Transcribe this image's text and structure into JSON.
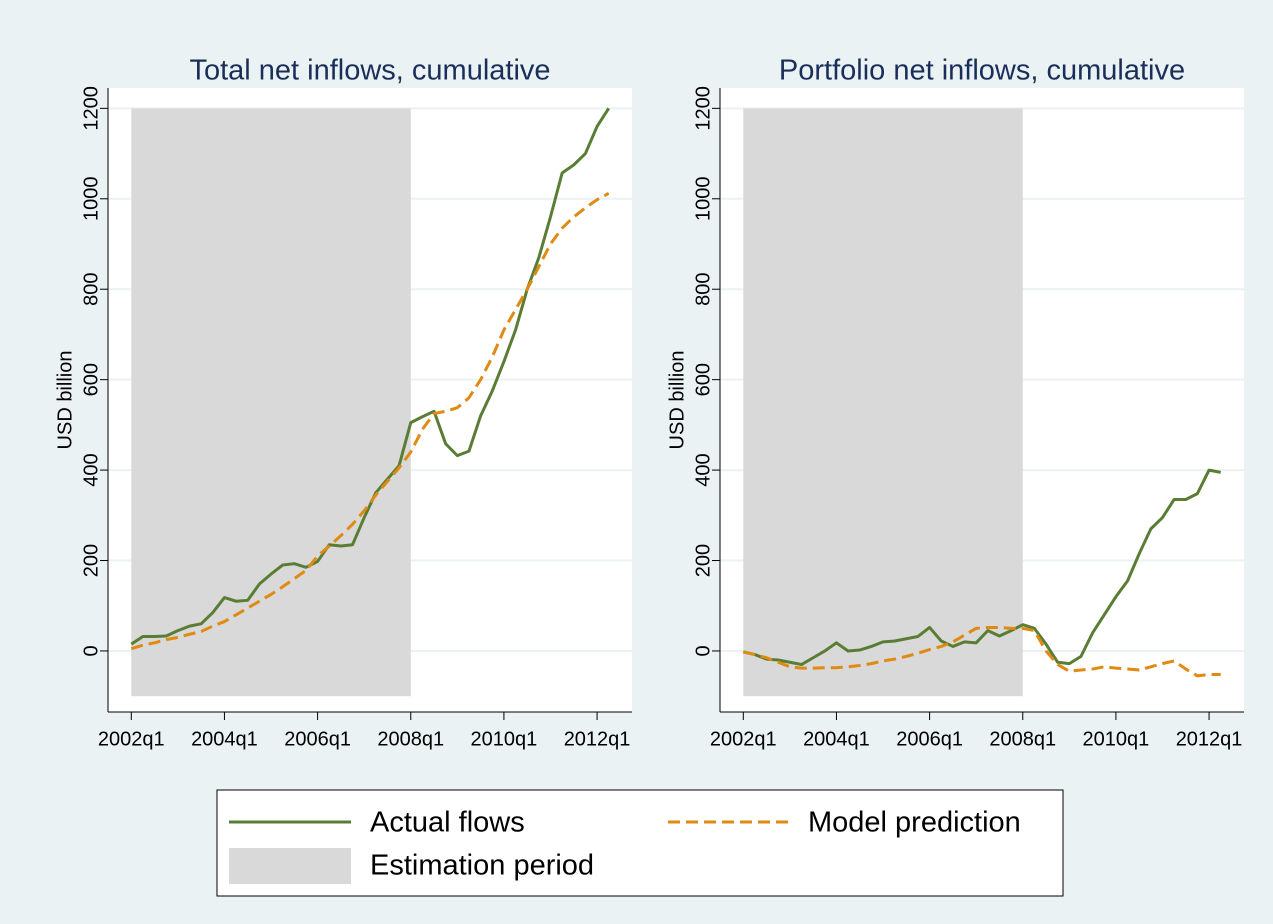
{
  "chart_data": [
    {
      "type": "line",
      "title": "Total net inflows, cumulative",
      "y_label": "USD billion",
      "x": [
        "2002q1",
        "2002q2",
        "2002q3",
        "2002q4",
        "2003q1",
        "2003q2",
        "2003q3",
        "2003q4",
        "2004q1",
        "2004q2",
        "2004q3",
        "2004q4",
        "2005q1",
        "2005q2",
        "2005q3",
        "2005q4",
        "2006q1",
        "2006q2",
        "2006q3",
        "2006q4",
        "2007q1",
        "2007q2",
        "2007q3",
        "2007q4",
        "2008q1",
        "2008q2",
        "2008q3",
        "2008q4",
        "2009q1",
        "2009q2",
        "2009q3",
        "2009q4",
        "2010q1",
        "2010q2",
        "2010q3",
        "2010q4",
        "2011q1",
        "2011q2",
        "2011q3",
        "2011q4",
        "2012q1",
        "2012q2"
      ],
      "series": [
        {
          "name": "Actual flows",
          "color": "#5a7d35",
          "dashed": false,
          "values": [
            15,
            32,
            32,
            33,
            45,
            55,
            60,
            85,
            118,
            110,
            112,
            148,
            170,
            190,
            193,
            185,
            198,
            235,
            232,
            235,
            295,
            350,
            380,
            410,
            505,
            518,
            530,
            458,
            432,
            442,
            520,
            575,
            640,
            710,
            800,
            870,
            960,
            1057,
            1075,
            1100,
            1160,
            1200
          ]
        },
        {
          "name": "Model prediction",
          "color": "#e08a12",
          "dashed": true,
          "values": [
            5,
            13,
            18,
            25,
            30,
            37,
            43,
            55,
            65,
            80,
            95,
            110,
            125,
            142,
            160,
            178,
            210,
            232,
            255,
            280,
            310,
            345,
            375,
            405,
            440,
            490,
            525,
            530,
            538,
            560,
            600,
            650,
            710,
            755,
            800,
            850,
            900,
            935,
            960,
            980,
            998,
            1012
          ]
        }
      ],
      "shade": {
        "name": "Estimation period",
        "color": "#d9d9d9",
        "x": [
          "2002q1",
          "2008q1"
        ],
        "y": [
          -100,
          1200
        ]
      },
      "xlim": [
        "2001q3",
        "2012q4"
      ],
      "xticks": [
        "2002q1",
        "2004q1",
        "2006q1",
        "2008q1",
        "2010q1",
        "2012q1"
      ],
      "ylim": [
        -135,
        1245
      ],
      "yticks": [
        0,
        200,
        400,
        600,
        800,
        1000,
        1200
      ],
      "grid": true,
      "legend": "bottom"
    },
    {
      "type": "line",
      "title": "Portfolio net inflows, cumulative",
      "y_label": "USD billion",
      "x": [
        "2002q1",
        "2002q2",
        "2002q3",
        "2002q4",
        "2003q1",
        "2003q2",
        "2003q3",
        "2003q4",
        "2004q1",
        "2004q2",
        "2004q3",
        "2004q4",
        "2005q1",
        "2005q2",
        "2005q3",
        "2005q4",
        "2006q1",
        "2006q2",
        "2006q3",
        "2006q4",
        "2007q1",
        "2007q2",
        "2007q3",
        "2007q4",
        "2008q1",
        "2008q2",
        "2008q3",
        "2008q4",
        "2009q1",
        "2009q2",
        "2009q3",
        "2009q4",
        "2010q1",
        "2010q2",
        "2010q3",
        "2010q4",
        "2011q1",
        "2011q2",
        "2011q3",
        "2011q4",
        "2012q1",
        "2012q2"
      ],
      "series": [
        {
          "name": "Actual flows",
          "color": "#5a7d35",
          "dashed": false,
          "values": [
            -2,
            -8,
            -18,
            -20,
            -25,
            -30,
            -15,
            0,
            18,
            0,
            2,
            10,
            20,
            22,
            27,
            32,
            52,
            22,
            10,
            20,
            18,
            45,
            33,
            45,
            58,
            50,
            15,
            -25,
            -28,
            -12,
            40,
            80,
            120,
            155,
            215,
            270,
            295,
            335,
            335,
            348,
            400,
            395
          ]
        },
        {
          "name": "Model prediction",
          "color": "#e08a12",
          "dashed": true,
          "values": [
            -2,
            -8,
            -15,
            -25,
            -35,
            -38,
            -38,
            -37,
            -37,
            -35,
            -32,
            -28,
            -22,
            -18,
            -12,
            -5,
            3,
            10,
            20,
            35,
            50,
            52,
            52,
            50,
            50,
            45,
            0,
            -30,
            -45,
            -42,
            -40,
            -35,
            -38,
            -40,
            -42,
            -35,
            -28,
            -22,
            -40,
            -55,
            -52,
            -52
          ]
        }
      ],
      "shade": {
        "name": "Estimation period",
        "color": "#d9d9d9",
        "x": [
          "2002q1",
          "2008q1"
        ],
        "y": [
          -100,
          1200
        ]
      },
      "xlim": [
        "2001q3",
        "2012q4"
      ],
      "xticks": [
        "2002q1",
        "2004q1",
        "2006q1",
        "2008q1",
        "2010q1",
        "2012q1"
      ],
      "ylim": [
        -135,
        1245
      ],
      "yticks": [
        0,
        200,
        400,
        600,
        800,
        1000,
        1200
      ],
      "grid": true
    }
  ]
}
